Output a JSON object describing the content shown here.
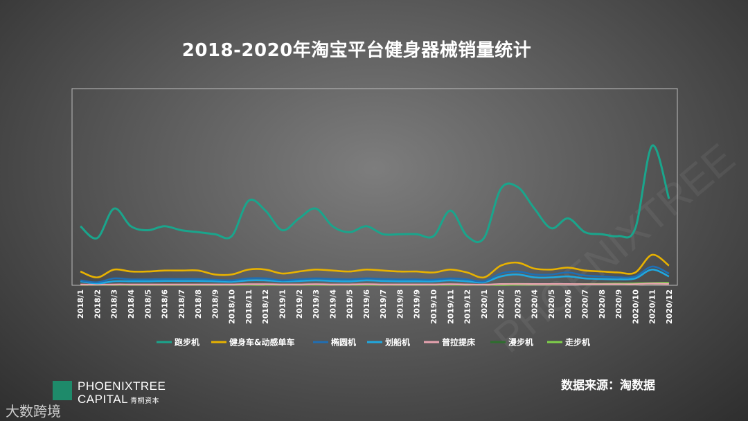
{
  "header": {
    "title": "2018-2020年淘宝平台健身器械销量统计"
  },
  "footer": {
    "source": "数据来源：淘数据",
    "logo_line1": "PHOENIXTREE",
    "logo_line2": "CAPITAL",
    "logo_cn": "青桐资本",
    "watermark_bottom": "大数跨境",
    "watermark_diag": "PHOENIXTREE"
  },
  "colors": {
    "treadmill": "#1aa58c",
    "bike": "#e8b200",
    "elliptical": "#1f6fb4",
    "rowing": "#1fa8e0",
    "pilates": "#e8a3b0",
    "walking_mill": "#2d6e2d",
    "walker": "#7fd24a"
  },
  "chart_data": {
    "type": "line",
    "title": "2018-2020年淘宝平台健身器械销量统计",
    "xlabel": "",
    "ylabel": "",
    "ylim": [
      0,
      100
    ],
    "grid": false,
    "legend_position": "bottom",
    "categories": [
      "2018/1",
      "2018/2",
      "2018/3",
      "2018/4",
      "2018/5",
      "2018/6",
      "2018/7",
      "2018/8",
      "2018/9",
      "2018/10",
      "2018/11",
      "2018/12",
      "2019/1",
      "2019/2",
      "2019/3",
      "2019/4",
      "2019/5",
      "2019/6",
      "2019/7",
      "2019/8",
      "2019/9",
      "2019/10",
      "2019/11",
      "2019/12",
      "2020/1",
      "2020/2",
      "2020/3",
      "2020/4",
      "2020/5",
      "2020/6",
      "2020/7",
      "2020/8",
      "2020/9",
      "2020/10",
      "2020/11",
      "2020/12"
    ],
    "series": [
      {
        "name": "跑步机",
        "color_key": "treadmill",
        "values": [
          30,
          24,
          39,
          30,
          28,
          30,
          28,
          27,
          26,
          25,
          43,
          38,
          28,
          34,
          39,
          30,
          27,
          30,
          26,
          26,
          26,
          25,
          38,
          25,
          24,
          49,
          50,
          39,
          29,
          34,
          27,
          26,
          25,
          29,
          71,
          44
        ]
      },
      {
        "name": "健身车&动感单车",
        "color_key": "bike",
        "values": [
          7,
          4,
          8,
          7,
          7,
          7.5,
          7.5,
          7.5,
          5.5,
          5.5,
          8,
          8,
          6,
          7,
          8,
          7.5,
          7,
          8,
          7.5,
          7,
          7,
          6.5,
          8,
          6.5,
          4,
          10,
          11.5,
          8.5,
          8,
          9,
          7.5,
          7,
          6.5,
          6.5,
          15.5,
          10
        ]
      },
      {
        "name": "椭圆机",
        "color_key": "elliptical",
        "values": [
          2.5,
          1.5,
          3.5,
          3,
          3,
          3.2,
          3.2,
          3.2,
          2.8,
          2.5,
          3.5,
          3.5,
          2.5,
          3,
          3.5,
          3.2,
          3,
          3.5,
          3.2,
          3,
          3,
          2.8,
          3.5,
          3,
          2,
          6,
          7,
          5.5,
          5.5,
          6.5,
          5,
          4.5,
          4,
          4.5,
          9.5,
          6
        ]
      },
      {
        "name": "划船机",
        "color_key": "rowing",
        "values": [
          2,
          1,
          2,
          2,
          2,
          2.2,
          2.2,
          2.2,
          2,
          1.8,
          2.5,
          2.5,
          2,
          2.2,
          2.5,
          2.2,
          2,
          2.5,
          2.2,
          2,
          2,
          2,
          2.5,
          2,
          1.5,
          4.5,
          5.5,
          4,
          4,
          4.5,
          3.5,
          3.2,
          3,
          3.5,
          8,
          4.5
        ]
      },
      {
        "name": "普拉提床",
        "color_key": "pilates",
        "values": [
          0.4,
          0.3,
          0.4,
          0.4,
          0.4,
          0.4,
          0.4,
          0.4,
          0.4,
          0.4,
          0.5,
          0.5,
          0.4,
          0.4,
          0.5,
          0.4,
          0.4,
          0.5,
          0.4,
          0.4,
          0.4,
          0.4,
          0.5,
          0.4,
          0.3,
          0.6,
          0.7,
          0.6,
          0.6,
          0.6,
          0.5,
          0.5,
          0.5,
          0.5,
          0.8,
          0.6
        ]
      },
      {
        "name": "漫步机",
        "color_key": "walking_mill",
        "values": [
          0.3,
          0.2,
          0.3,
          0.3,
          0.3,
          0.3,
          0.3,
          0.3,
          0.3,
          0.3,
          0.4,
          0.4,
          0.3,
          0.3,
          0.4,
          0.3,
          0.3,
          0.4,
          0.3,
          0.3,
          0.3,
          0.3,
          0.4,
          0.3,
          0.2,
          0.6,
          0.8,
          0.6,
          0.5,
          0.5,
          0.4,
          0.4,
          0.4,
          0.4,
          0.6,
          0.5
        ]
      },
      {
        "name": "走步机",
        "color_key": "walker",
        "values": [
          0.1,
          0.1,
          0.1,
          0.1,
          0.1,
          0.1,
          0.1,
          0.1,
          0.1,
          0.1,
          0.1,
          0.1,
          0.1,
          0.1,
          0.1,
          0.1,
          0.1,
          0.1,
          0.1,
          0.1,
          0.1,
          0.1,
          0.1,
          0.1,
          0.1,
          0.2,
          0.3,
          0.4,
          0.4,
          0.5,
          0.6,
          0.7,
          0.8,
          0.9,
          1.1,
          1.2
        ]
      }
    ]
  }
}
